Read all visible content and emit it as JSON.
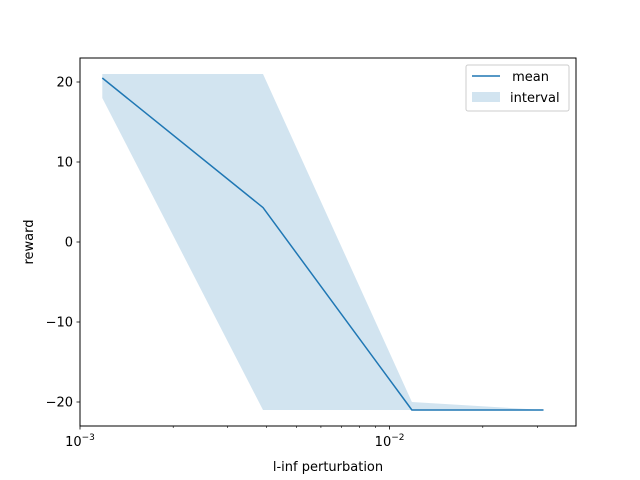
{
  "chart_data": {
    "type": "line",
    "xscale": "log",
    "xlabel": "l-inf perturbation",
    "ylabel": "reward",
    "xlim": [
      0.001,
      0.04
    ],
    "ylim": [
      -23,
      23
    ],
    "xticks": [
      {
        "value": 0.001,
        "base": "10",
        "exp": "−3"
      },
      {
        "value": 0.01,
        "base": "10",
        "exp": "−2"
      }
    ],
    "yticks": [
      20,
      10,
      0,
      -10,
      -20
    ],
    "yticklabels": [
      "20",
      "10",
      "0",
      "−10",
      "−20"
    ],
    "series": [
      {
        "name": " mean",
        "kind": "line",
        "color": "#1f77b4",
        "x": [
          0.00118,
          0.0039,
          0.0118,
          0.0314
        ],
        "y": [
          20.5,
          4.3,
          -21.0,
          -21.0
        ]
      }
    ],
    "interval": {
      "name": "interval",
      "color": "#1f77b4",
      "opacity": 0.2,
      "x": [
        0.00118,
        0.0039,
        0.0118,
        0.0314
      ],
      "lower": [
        18.0,
        -21.0,
        -21.0,
        -21.0
      ],
      "upper": [
        21.0,
        21.0,
        -20.0,
        -21.0
      ]
    },
    "legend": {
      "placement": "upper-right",
      "entries": [
        " mean",
        "interval"
      ]
    }
  }
}
